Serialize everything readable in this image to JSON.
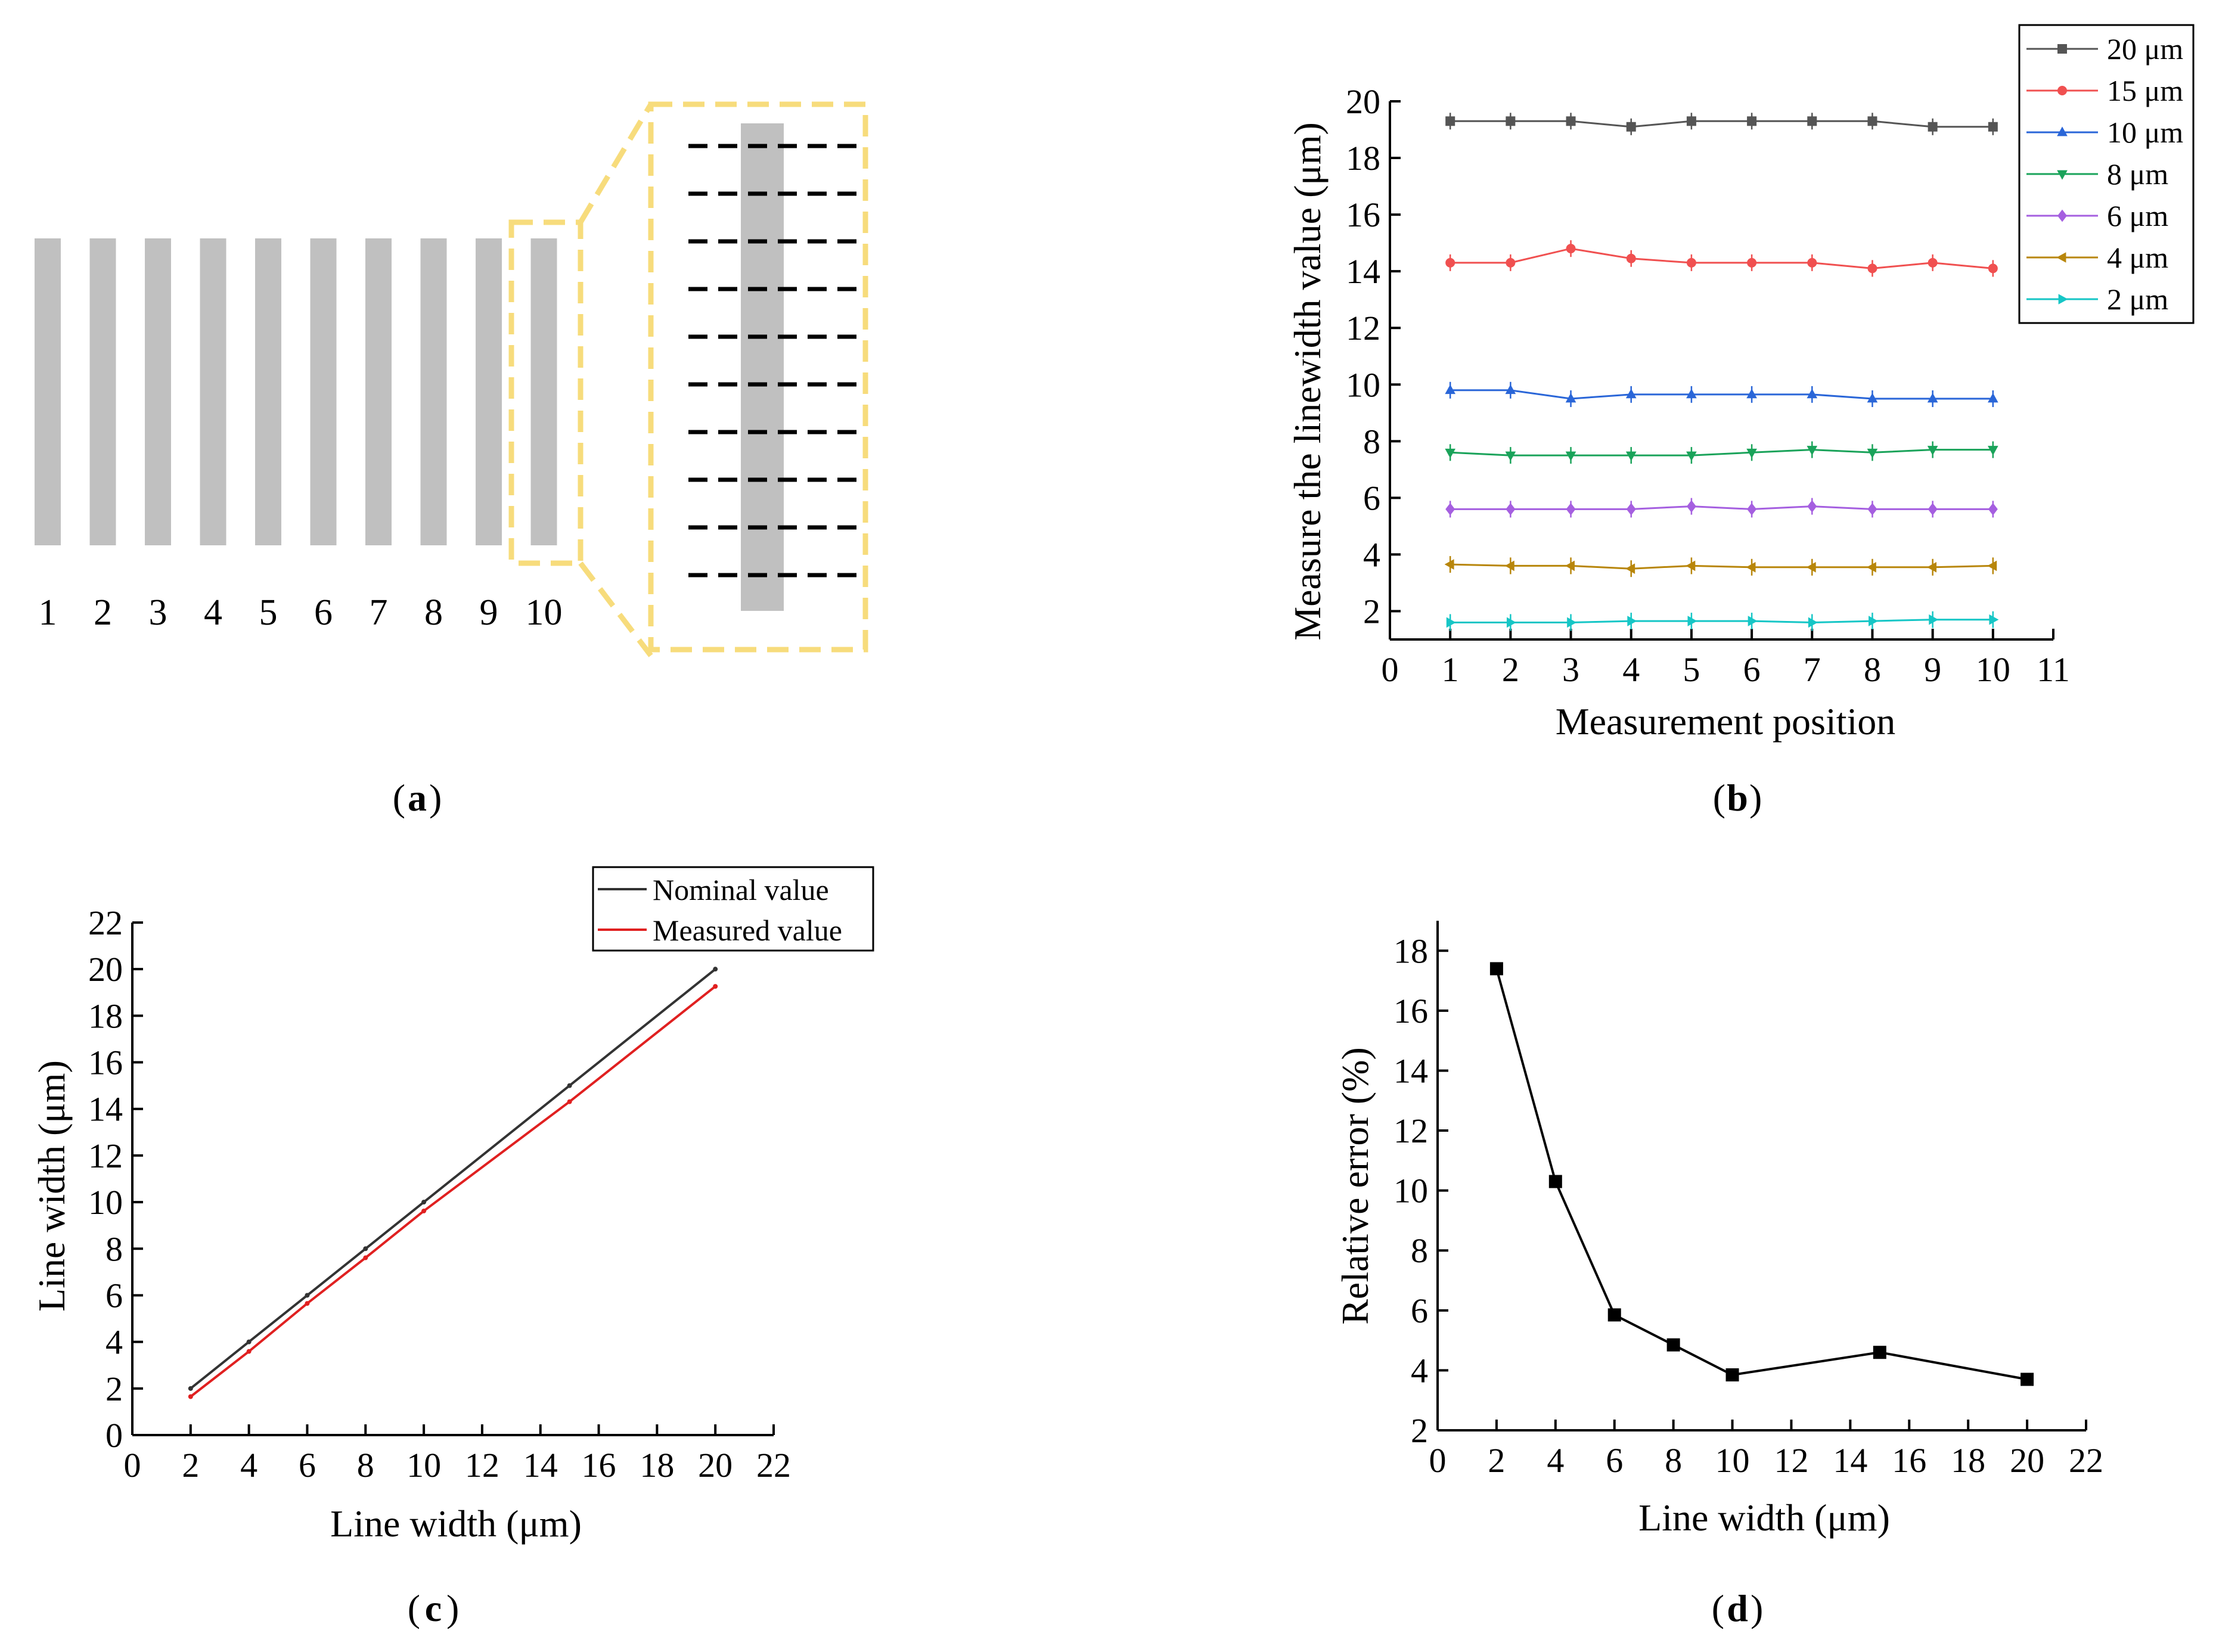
{
  "panels": {
    "a": {
      "caption": "a",
      "positions": [
        "1",
        "2",
        "3",
        "4",
        "5",
        "6",
        "7",
        "8",
        "9",
        "10"
      ],
      "bar_color": "#c0c0c0",
      "highlight_color": "#f7dc7c",
      "dash_count": 10
    }
  },
  "chart_data": [
    {
      "panel": "b",
      "caption": "b",
      "type": "line",
      "title": "",
      "xlabel": "Measurement position",
      "ylabel": "Measure the linewidth value (μm)",
      "xlim": [
        0,
        11
      ],
      "ylim": [
        1,
        20
      ],
      "xticks": [
        0,
        1,
        2,
        3,
        4,
        5,
        6,
        7,
        8,
        9,
        10,
        11
      ],
      "yticks": [
        2,
        4,
        6,
        8,
        10,
        12,
        14,
        16,
        18,
        20
      ],
      "grid": false,
      "legend_position": "top-right-outside",
      "x": [
        1,
        2,
        3,
        4,
        5,
        6,
        7,
        8,
        9,
        10
      ],
      "series": [
        {
          "name": "20 μm",
          "color": "#555555",
          "marker": "square",
          "values": [
            19.3,
            19.3,
            19.3,
            19.1,
            19.3,
            19.3,
            19.3,
            19.3,
            19.1,
            19.1
          ]
        },
        {
          "name": "15 μm",
          "color": "#f05050",
          "marker": "circle",
          "values": [
            14.3,
            14.3,
            14.8,
            14.45,
            14.3,
            14.3,
            14.3,
            14.1,
            14.3,
            14.1
          ]
        },
        {
          "name": "10 μm",
          "color": "#2a66d8",
          "marker": "triangle-up",
          "values": [
            9.8,
            9.8,
            9.5,
            9.65,
            9.65,
            9.65,
            9.65,
            9.5,
            9.5,
            9.5
          ]
        },
        {
          "name": "8 μm",
          "color": "#1aa35a",
          "marker": "triangle-down",
          "values": [
            7.6,
            7.5,
            7.5,
            7.5,
            7.5,
            7.6,
            7.7,
            7.6,
            7.7,
            7.7
          ]
        },
        {
          "name": "6 μm",
          "color": "#a55fe0",
          "marker": "diamond",
          "values": [
            5.6,
            5.6,
            5.6,
            5.6,
            5.7,
            5.6,
            5.7,
            5.6,
            5.6,
            5.6
          ]
        },
        {
          "name": "4 μm",
          "color": "#b8860b",
          "marker": "triangle-left",
          "values": [
            3.65,
            3.6,
            3.6,
            3.5,
            3.6,
            3.55,
            3.55,
            3.55,
            3.55,
            3.6
          ]
        },
        {
          "name": "2 μm",
          "color": "#16c6c6",
          "marker": "triangle-right",
          "values": [
            1.6,
            1.6,
            1.6,
            1.65,
            1.65,
            1.65,
            1.6,
            1.65,
            1.7,
            1.7
          ]
        }
      ]
    },
    {
      "panel": "c",
      "caption": "c",
      "type": "line",
      "title": "",
      "xlabel": "Line width (μm)",
      "ylabel": "Line width (μm)",
      "xlim": [
        0,
        22
      ],
      "ylim": [
        0,
        22
      ],
      "xticks": [
        0,
        2,
        4,
        6,
        8,
        10,
        12,
        14,
        16,
        18,
        20,
        22
      ],
      "yticks": [
        0,
        2,
        4,
        6,
        8,
        10,
        12,
        14,
        16,
        18,
        20,
        22
      ],
      "grid": false,
      "legend_position": "top-right",
      "x": [
        2,
        4,
        6,
        8,
        10,
        15,
        20
      ],
      "series": [
        {
          "name": "Nominal value",
          "color": "#333333",
          "values": [
            2,
            4,
            6,
            8,
            10,
            15,
            20
          ]
        },
        {
          "name": "Measured value",
          "color": "#e02020",
          "values": [
            1.65,
            3.59,
            5.65,
            7.61,
            9.62,
            14.31,
            19.26
          ]
        }
      ]
    },
    {
      "panel": "d",
      "caption": "d",
      "type": "line",
      "title": "",
      "xlabel": "Line width (μm)",
      "ylabel": "Relative error (%)",
      "xlim": [
        0,
        22
      ],
      "ylim": [
        2,
        19
      ],
      "xticks": [
        0,
        2,
        4,
        6,
        8,
        10,
        12,
        14,
        16,
        18,
        20,
        22
      ],
      "yticks": [
        2,
        4,
        6,
        8,
        10,
        12,
        14,
        16,
        18
      ],
      "grid": false,
      "legend_position": "none",
      "x": [
        2,
        4,
        6,
        8,
        10,
        15,
        20
      ],
      "series": [
        {
          "color": "#000000",
          "marker": "square",
          "values": [
            17.4,
            10.3,
            5.85,
            4.85,
            3.85,
            4.6,
            3.7
          ]
        }
      ]
    }
  ]
}
